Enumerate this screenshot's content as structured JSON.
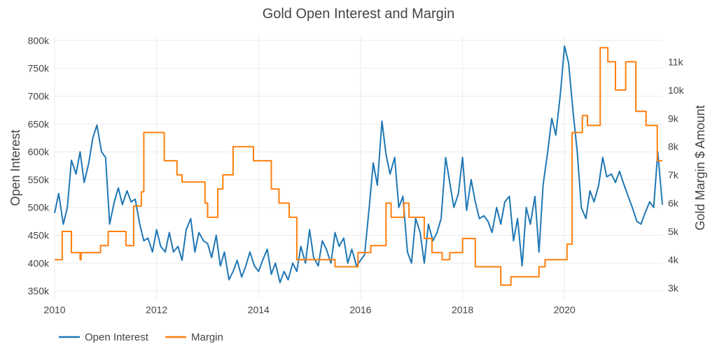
{
  "chart_data": {
    "type": "line",
    "title": "Gold Open Interest and Margin",
    "xlabel": "",
    "ylabel": "Open Interest",
    "y2label": "Gold Margin $ Amount",
    "xlim": [
      2010,
      2021.92
    ],
    "ylim": [
      335000,
      810000
    ],
    "y2lim": [
      2600,
      11950
    ],
    "x_ticks": [
      2010,
      2012,
      2014,
      2016,
      2018,
      2020
    ],
    "x_tick_labels": [
      "2010",
      "2012",
      "2014",
      "2016",
      "2018",
      "2020"
    ],
    "y_ticks": [
      350000,
      400000,
      450000,
      500000,
      550000,
      600000,
      650000,
      700000,
      750000,
      800000
    ],
    "y_tick_labels": [
      "350k",
      "400k",
      "450k",
      "500k",
      "550k",
      "600k",
      "650k",
      "700k",
      "750k",
      "800k"
    ],
    "y2_ticks": [
      3000,
      4000,
      5000,
      6000,
      7000,
      8000,
      9000,
      10000,
      11000
    ],
    "y2_tick_labels": [
      "3k",
      "4k",
      "5k",
      "6k",
      "7k",
      "8k",
      "9k",
      "10k",
      "11k"
    ],
    "grid": true,
    "legend_position": "bottom-left",
    "series": [
      {
        "name": "Open Interest",
        "axis": "left",
        "color": "#1f77b4",
        "x": [
          2010.0,
          2010.08,
          2010.17,
          2010.25,
          2010.33,
          2010.42,
          2010.5,
          2010.58,
          2010.67,
          2010.75,
          2010.83,
          2010.92,
          2011.0,
          2011.08,
          2011.17,
          2011.25,
          2011.33,
          2011.42,
          2011.5,
          2011.58,
          2011.67,
          2011.75,
          2011.83,
          2011.92,
          2012.0,
          2012.08,
          2012.17,
          2012.25,
          2012.33,
          2012.42,
          2012.5,
          2012.58,
          2012.67,
          2012.75,
          2012.83,
          2012.92,
          2013.0,
          2013.08,
          2013.17,
          2013.25,
          2013.33,
          2013.42,
          2013.5,
          2013.58,
          2013.67,
          2013.75,
          2013.83,
          2013.92,
          2014.0,
          2014.08,
          2014.17,
          2014.25,
          2014.33,
          2014.42,
          2014.5,
          2014.58,
          2014.67,
          2014.75,
          2014.83,
          2014.92,
          2015.0,
          2015.08,
          2015.17,
          2015.25,
          2015.33,
          2015.42,
          2015.5,
          2015.58,
          2015.67,
          2015.75,
          2015.83,
          2015.92,
          2016.0,
          2016.08,
          2016.17,
          2016.25,
          2016.33,
          2016.42,
          2016.5,
          2016.58,
          2016.67,
          2016.75,
          2016.83,
          2016.92,
          2017.0,
          2017.08,
          2017.17,
          2017.25,
          2017.33,
          2017.42,
          2017.5,
          2017.58,
          2017.67,
          2017.75,
          2017.83,
          2017.92,
          2018.0,
          2018.08,
          2018.17,
          2018.25,
          2018.33,
          2018.42,
          2018.5,
          2018.58,
          2018.67,
          2018.75,
          2018.83,
          2018.92,
          2019.0,
          2019.08,
          2019.17,
          2019.25,
          2019.33,
          2019.42,
          2019.5,
          2019.58,
          2019.67,
          2019.75,
          2019.83,
          2019.92,
          2020.0,
          2020.08,
          2020.17,
          2020.25,
          2020.33,
          2020.42,
          2020.5,
          2020.58,
          2020.67,
          2020.75,
          2020.83,
          2020.92,
          2021.0,
          2021.08,
          2021.17,
          2021.25,
          2021.33,
          2021.42,
          2021.5,
          2021.58,
          2021.67,
          2021.75,
          2021.83,
          2021.92
        ],
        "values": [
          490000,
          525000,
          470000,
          500000,
          585000,
          560000,
          600000,
          545000,
          580000,
          625000,
          648000,
          600000,
          590000,
          470000,
          510000,
          535000,
          505000,
          530000,
          510000,
          515000,
          470000,
          440000,
          445000,
          420000,
          460000,
          430000,
          420000,
          455000,
          420000,
          430000,
          405000,
          460000,
          480000,
          420000,
          455000,
          440000,
          435000,
          410000,
          450000,
          395000,
          420000,
          370000,
          385000,
          405000,
          375000,
          395000,
          420000,
          395000,
          385000,
          405000,
          425000,
          380000,
          400000,
          365000,
          385000,
          370000,
          400000,
          385000,
          430000,
          400000,
          460000,
          410000,
          395000,
          440000,
          425000,
          400000,
          455000,
          430000,
          445000,
          400000,
          425000,
          395000,
          405000,
          415000,
          500000,
          580000,
          540000,
          655000,
          595000,
          560000,
          590000,
          500000,
          520000,
          420000,
          400000,
          480000,
          455000,
          400000,
          470000,
          440000,
          455000,
          480000,
          590000,
          545000,
          500000,
          525000,
          590000,
          495000,
          550000,
          510000,
          480000,
          485000,
          475000,
          455000,
          500000,
          470000,
          510000,
          520000,
          440000,
          480000,
          395000,
          500000,
          470000,
          520000,
          420000,
          540000,
          600000,
          660000,
          630000,
          705000,
          790000,
          760000,
          670000,
          600000,
          500000,
          480000,
          530000,
          510000,
          540000,
          590000,
          555000,
          560000,
          545000,
          565000,
          540000,
          520000,
          500000,
          475000,
          470000,
          490000,
          510000,
          500000,
          600000,
          505000
        ]
      },
      {
        "name": "Margin",
        "axis": "right",
        "color": "#ff7f0e",
        "step": true,
        "x": [
          2010.0,
          2010.15,
          2010.33,
          2010.5,
          2010.52,
          2010.9,
          2011.05,
          2011.4,
          2011.55,
          2011.7,
          2011.75,
          2012.15,
          2012.4,
          2012.5,
          2012.95,
          2013.0,
          2013.2,
          2013.3,
          2013.5,
          2013.9,
          2014.25,
          2014.4,
          2014.6,
          2014.75,
          2014.8,
          2015.35,
          2015.5,
          2015.95,
          2016.2,
          2016.5,
          2016.6,
          2016.85,
          2016.95,
          2017.25,
          2017.4,
          2017.6,
          2017.75,
          2018.0,
          2018.25,
          2018.75,
          2018.95,
          2019.5,
          2019.62,
          2020.05,
          2020.15,
          2020.35,
          2020.45,
          2020.7,
          2020.85,
          2021.0,
          2021.2,
          2021.4,
          2021.6,
          2021.82
        ],
        "values": [
          4000,
          5000,
          4250,
          4000,
          4250,
          4500,
          5000,
          4500,
          5900,
          6400,
          8500,
          7500,
          7000,
          6750,
          6000,
          5500,
          6500,
          7000,
          8000,
          7500,
          6500,
          6000,
          5500,
          4000,
          4000,
          4000,
          3750,
          4250,
          4500,
          6000,
          5500,
          6000,
          5500,
          4750,
          4250,
          4000,
          4250,
          4750,
          3750,
          3100,
          3400,
          3750,
          4000,
          4550,
          8500,
          9100,
          8750,
          11500,
          11000,
          10000,
          11000,
          9250,
          8750,
          7500
        ]
      }
    ]
  },
  "legend": {
    "items": [
      {
        "label": "Open Interest",
        "color": "#1f77b4"
      },
      {
        "label": "Margin",
        "color": "#ff7f0e"
      }
    ]
  }
}
